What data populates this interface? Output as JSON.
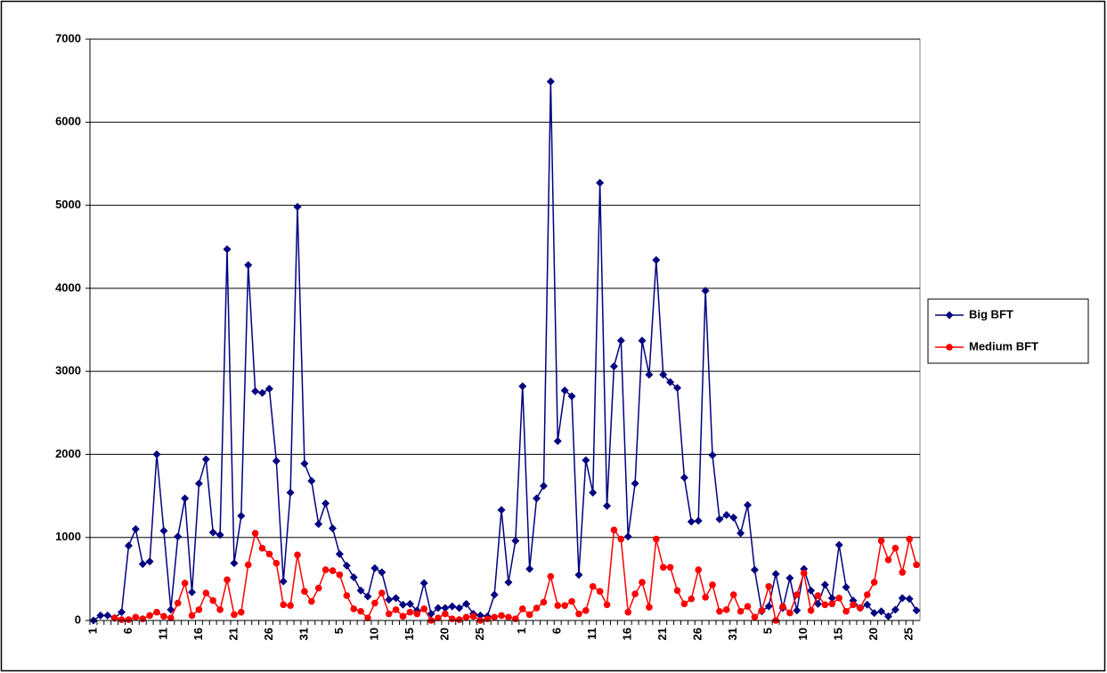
{
  "chart_data": {
    "type": "line",
    "categories": [
      "1",
      null,
      null,
      null,
      null,
      "6",
      null,
      null,
      null,
      null,
      "11",
      null,
      null,
      null,
      null,
      "16",
      null,
      null,
      null,
      null,
      "21",
      null,
      null,
      null,
      null,
      "26",
      null,
      null,
      null,
      null,
      "31",
      null,
      null,
      null,
      null,
      "5",
      null,
      null,
      null,
      null,
      "10",
      null,
      null,
      null,
      null,
      "15",
      null,
      null,
      null,
      null,
      "20",
      null,
      null,
      null,
      null,
      "25",
      null,
      null,
      null,
      null,
      null,
      "1",
      null,
      null,
      null,
      null,
      "6",
      null,
      null,
      null,
      null,
      "11",
      null,
      null,
      null,
      null,
      "16",
      null,
      null,
      null,
      null,
      "21",
      null,
      null,
      null,
      null,
      "26",
      null,
      null,
      null,
      null,
      "31",
      null,
      null,
      null,
      null,
      "5",
      null,
      null,
      null,
      null,
      "10",
      null,
      null,
      null,
      null,
      "15",
      null,
      null,
      null,
      null,
      "20",
      null,
      null,
      null,
      null,
      "25",
      null
    ],
    "series": [
      {
        "name": "Big BFT",
        "color": "#000080",
        "marker": "diamond",
        "values": [
          0,
          60,
          60,
          30,
          100,
          900,
          1100,
          680,
          710,
          2000,
          1080,
          130,
          1010,
          1470,
          340,
          1650,
          1940,
          1060,
          1030,
          4470,
          690,
          1260,
          4280,
          2760,
          2740,
          2790,
          1920,
          470,
          1540,
          4980,
          1890,
          1680,
          1160,
          1410,
          1110,
          800,
          660,
          520,
          360,
          290,
          630,
          580,
          250,
          270,
          190,
          200,
          120,
          450,
          80,
          150,
          150,
          170,
          150,
          200,
          80,
          60,
          50,
          310,
          1330,
          460,
          960,
          2820,
          620,
          1470,
          1620,
          6490,
          2160,
          2770,
          2700,
          550,
          1930,
          1540,
          5270,
          1380,
          3060,
          3370,
          1010,
          1650,
          3370,
          2960,
          4340,
          2960,
          2870,
          2800,
          1720,
          1190,
          1200,
          3970,
          1990,
          1220,
          1270,
          1240,
          1050,
          1390,
          610,
          110,
          170,
          560,
          150,
          510,
          120,
          620,
          360,
          200,
          430,
          270,
          910,
          400,
          240,
          150,
          190,
          90,
          110,
          50,
          130,
          270,
          260,
          120
        ]
      },
      {
        "name": "Medium BFT",
        "color": "#ff0000",
        "marker": "circle",
        "values": [
          null,
          null,
          null,
          30,
          10,
          10,
          40,
          20,
          60,
          100,
          50,
          30,
          210,
          450,
          60,
          130,
          330,
          240,
          130,
          490,
          70,
          100,
          670,
          1050,
          870,
          800,
          690,
          190,
          180,
          790,
          350,
          230,
          390,
          610,
          600,
          550,
          300,
          140,
          110,
          30,
          210,
          330,
          80,
          130,
          50,
          100,
          80,
          140,
          0,
          30,
          80,
          20,
          10,
          40,
          50,
          0,
          20,
          40,
          60,
          40,
          20,
          140,
          70,
          150,
          220,
          530,
          180,
          180,
          230,
          80,
          120,
          410,
          350,
          190,
          1090,
          980,
          100,
          320,
          460,
          160,
          980,
          640,
          640,
          360,
          200,
          260,
          610,
          280,
          430,
          110,
          130,
          310,
          110,
          170,
          40,
          120,
          410,
          0,
          170,
          90,
          310,
          570,
          120,
          300,
          190,
          200,
          270,
          110,
          190,
          150,
          310,
          460,
          960,
          730,
          870,
          580,
          980,
          670
        ]
      }
    ],
    "ylim": [
      0,
      7000
    ],
    "yticks": [
      0,
      1000,
      2000,
      3000,
      4000,
      5000,
      6000,
      7000
    ],
    "grid": true,
    "legend": "right"
  }
}
